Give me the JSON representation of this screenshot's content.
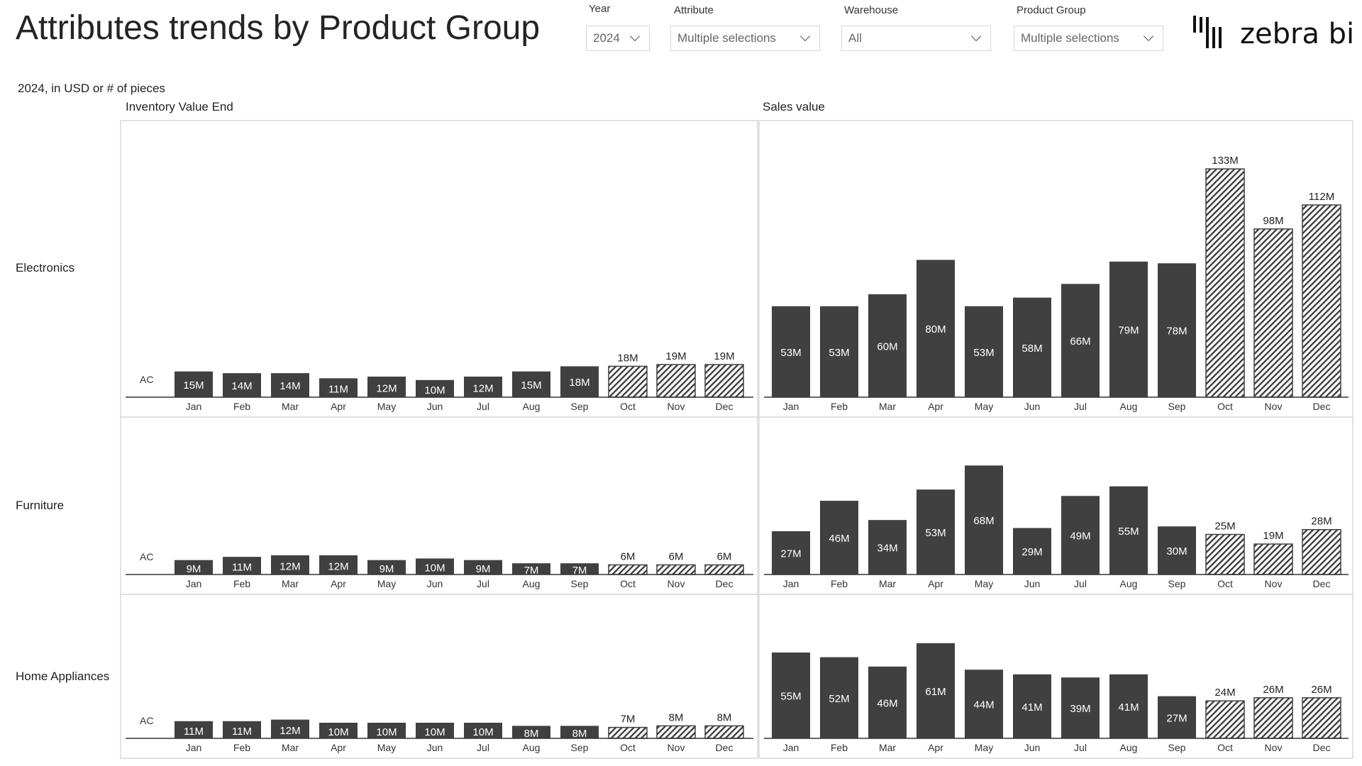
{
  "header": {
    "title": "Attributes trends by Product Group",
    "subtitle": "2024, in USD or # of pieces",
    "logo_text": "zebra bi"
  },
  "filters": [
    {
      "label": "Year",
      "value": "2024"
    },
    {
      "label": "Attribute",
      "value": "Multiple selections"
    },
    {
      "label": "Warehouse",
      "value": "All"
    },
    {
      "label": "Product Group",
      "value": "Multiple selections"
    }
  ],
  "columns": [
    "Inventory Value End",
    "Sales value"
  ],
  "rows": [
    "Electronics",
    "Furniture",
    "Home Appliances"
  ],
  "colors": {
    "actual": "#404040",
    "forecast_hatch": "#404040",
    "axis": "#333333",
    "panel_border": "#d9d9d9"
  },
  "chart_data": [
    {
      "type": "bar",
      "row": "Electronics",
      "title": "Inventory Value End",
      "scenario_label": "AC",
      "categories": [
        "Jan",
        "Feb",
        "Mar",
        "Apr",
        "May",
        "Jun",
        "Jul",
        "Aug",
        "Sep",
        "Oct",
        "Nov",
        "Dec"
      ],
      "values": [
        15,
        14,
        14,
        11,
        12,
        10,
        12,
        15,
        18,
        18,
        19,
        19
      ],
      "labels": [
        "15M",
        "14M",
        "14M",
        "11M",
        "12M",
        "10M",
        "12M",
        "15M",
        "18M",
        "18M",
        "19M",
        "19M"
      ],
      "forecast_from": "Oct",
      "unit": "M"
    },
    {
      "type": "bar",
      "row": "Electronics",
      "title": "Sales value",
      "categories": [
        "Jan",
        "Feb",
        "Mar",
        "Apr",
        "May",
        "Jun",
        "Jul",
        "Aug",
        "Sep",
        "Oct",
        "Nov",
        "Dec"
      ],
      "values": [
        53,
        53,
        60,
        80,
        53,
        58,
        66,
        79,
        78,
        133,
        98,
        112
      ],
      "labels": [
        "53M",
        "53M",
        "60M",
        "80M",
        "53M",
        "58M",
        "66M",
        "79M",
        "78M",
        "133M",
        "98M",
        "112M"
      ],
      "forecast_from": "Oct",
      "unit": "M"
    },
    {
      "type": "bar",
      "row": "Furniture",
      "title": "Inventory Value End",
      "scenario_label": "AC",
      "categories": [
        "Jan",
        "Feb",
        "Mar",
        "Apr",
        "May",
        "Jun",
        "Jul",
        "Aug",
        "Sep",
        "Oct",
        "Nov",
        "Dec"
      ],
      "values": [
        9,
        11,
        12,
        12,
        9,
        10,
        9,
        7,
        7,
        6,
        6,
        6
      ],
      "labels": [
        "9M",
        "11M",
        "12M",
        "12M",
        "9M",
        "10M",
        "9M",
        "7M",
        "7M",
        "6M",
        "6M",
        "6M"
      ],
      "forecast_from": "Oct",
      "unit": "M"
    },
    {
      "type": "bar",
      "row": "Furniture",
      "title": "Sales value",
      "categories": [
        "Jan",
        "Feb",
        "Mar",
        "Apr",
        "May",
        "Jun",
        "Jul",
        "Aug",
        "Sep",
        "Oct",
        "Nov",
        "Dec"
      ],
      "values": [
        27,
        46,
        34,
        53,
        68,
        29,
        49,
        55,
        30,
        25,
        19,
        28
      ],
      "labels": [
        "27M",
        "46M",
        "34M",
        "53M",
        "68M",
        "29M",
        "49M",
        "55M",
        "30M",
        "25M",
        "19M",
        "28M"
      ],
      "forecast_from": "Oct",
      "unit": "M"
    },
    {
      "type": "bar",
      "row": "Home Appliances",
      "title": "Inventory Value End",
      "scenario_label": "AC",
      "categories": [
        "Jan",
        "Feb",
        "Mar",
        "Apr",
        "May",
        "Jun",
        "Jul",
        "Aug",
        "Sep",
        "Oct",
        "Nov",
        "Dec"
      ],
      "values": [
        11,
        11,
        12,
        10,
        10,
        10,
        10,
        8,
        8,
        7,
        8,
        8
      ],
      "labels": [
        "11M",
        "11M",
        "12M",
        "10M",
        "10M",
        "10M",
        "10M",
        "8M",
        "8M",
        "7M",
        "8M",
        "8M"
      ],
      "forecast_from": "Oct",
      "unit": "M"
    },
    {
      "type": "bar",
      "row": "Home Appliances",
      "title": "Sales value",
      "categories": [
        "Jan",
        "Feb",
        "Mar",
        "Apr",
        "May",
        "Jun",
        "Jul",
        "Aug",
        "Sep",
        "Oct",
        "Nov",
        "Dec"
      ],
      "values": [
        55,
        52,
        46,
        61,
        44,
        41,
        39,
        41,
        27,
        24,
        26,
        26
      ],
      "labels": [
        "55M",
        "52M",
        "46M",
        "61M",
        "44M",
        "41M",
        "39M",
        "41M",
        "27M",
        "24M",
        "26M",
        "26M"
      ],
      "forecast_from": "Oct",
      "unit": "M"
    }
  ]
}
